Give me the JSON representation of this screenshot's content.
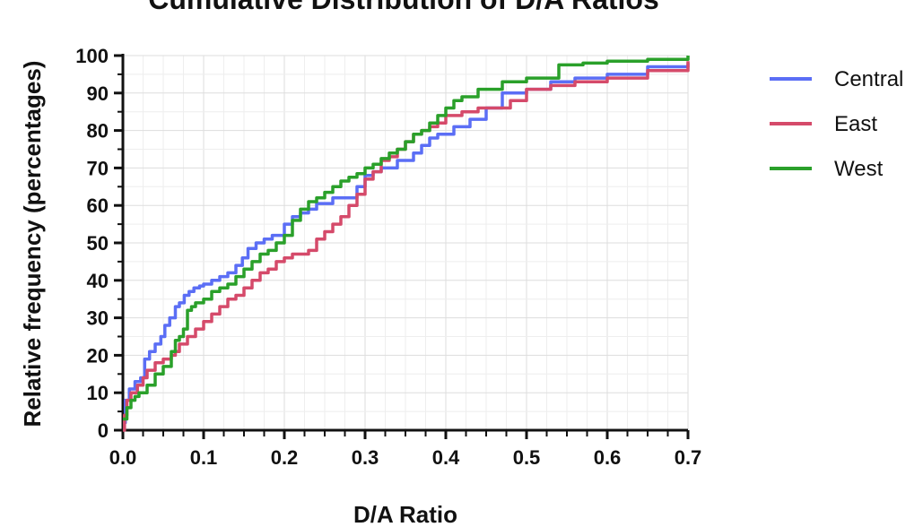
{
  "chart_data": {
    "type": "line",
    "title": "Cumulative Distribution of D/A Ratios",
    "xlabel": "D/A Ratio",
    "ylabel": "Relative frequency (percentages)",
    "xlim": [
      0,
      0.7
    ],
    "ylim": [
      0,
      100
    ],
    "x_ticks": [
      "0.0",
      "0.1",
      "0.2",
      "0.3",
      "0.4",
      "0.5",
      "0.6",
      "0.7"
    ],
    "y_ticks": [
      "0",
      "10",
      "20",
      "30",
      "40",
      "50",
      "60",
      "70",
      "80",
      "90",
      "100"
    ],
    "grid": true,
    "legend_position": "right",
    "series": [
      {
        "name": "Central",
        "color": "#5b6ef5",
        "points": [
          [
            0,
            2
          ],
          [
            0.003,
            8
          ],
          [
            0.008,
            11
          ],
          [
            0.015,
            13
          ],
          [
            0.022,
            14
          ],
          [
            0.027,
            19
          ],
          [
            0.033,
            21
          ],
          [
            0.04,
            23
          ],
          [
            0.047,
            25
          ],
          [
            0.052,
            28
          ],
          [
            0.058,
            30
          ],
          [
            0.065,
            33
          ],
          [
            0.07,
            34
          ],
          [
            0.076,
            36
          ],
          [
            0.082,
            37
          ],
          [
            0.088,
            38
          ],
          [
            0.095,
            38.5
          ],
          [
            0.1,
            39
          ],
          [
            0.11,
            40
          ],
          [
            0.12,
            41
          ],
          [
            0.13,
            42
          ],
          [
            0.14,
            44
          ],
          [
            0.148,
            46
          ],
          [
            0.155,
            48.5
          ],
          [
            0.165,
            50
          ],
          [
            0.175,
            51
          ],
          [
            0.185,
            52
          ],
          [
            0.2,
            55
          ],
          [
            0.21,
            57
          ],
          [
            0.22,
            58
          ],
          [
            0.23,
            59
          ],
          [
            0.24,
            60.5
          ],
          [
            0.26,
            62
          ],
          [
            0.28,
            62
          ],
          [
            0.29,
            65
          ],
          [
            0.3,
            68
          ],
          [
            0.31,
            69
          ],
          [
            0.32,
            70
          ],
          [
            0.34,
            72
          ],
          [
            0.36,
            74
          ],
          [
            0.37,
            76
          ],
          [
            0.38,
            78
          ],
          [
            0.39,
            79
          ],
          [
            0.41,
            81
          ],
          [
            0.43,
            83
          ],
          [
            0.45,
            86
          ],
          [
            0.47,
            90
          ],
          [
            0.5,
            91
          ],
          [
            0.53,
            93
          ],
          [
            0.56,
            94
          ],
          [
            0.6,
            95
          ],
          [
            0.65,
            97
          ],
          [
            0.7,
            98
          ]
        ]
      },
      {
        "name": "East",
        "color": "#d54a6a",
        "points": [
          [
            0,
            0
          ],
          [
            0.002,
            4
          ],
          [
            0.005,
            8
          ],
          [
            0.01,
            10
          ],
          [
            0.018,
            12
          ],
          [
            0.025,
            14
          ],
          [
            0.03,
            16
          ],
          [
            0.04,
            18
          ],
          [
            0.05,
            19
          ],
          [
            0.06,
            20
          ],
          [
            0.065,
            21
          ],
          [
            0.07,
            23
          ],
          [
            0.08,
            25
          ],
          [
            0.09,
            27
          ],
          [
            0.1,
            29
          ],
          [
            0.11,
            31
          ],
          [
            0.12,
            33
          ],
          [
            0.13,
            35
          ],
          [
            0.14,
            36
          ],
          [
            0.15,
            38
          ],
          [
            0.16,
            40
          ],
          [
            0.17,
            42
          ],
          [
            0.18,
            43
          ],
          [
            0.19,
            45
          ],
          [
            0.2,
            46
          ],
          [
            0.21,
            47
          ],
          [
            0.22,
            47
          ],
          [
            0.23,
            48
          ],
          [
            0.24,
            51
          ],
          [
            0.25,
            53
          ],
          [
            0.26,
            55
          ],
          [
            0.27,
            57
          ],
          [
            0.28,
            60
          ],
          [
            0.29,
            63
          ],
          [
            0.3,
            67
          ],
          [
            0.31,
            69
          ],
          [
            0.32,
            72
          ],
          [
            0.33,
            73
          ],
          [
            0.34,
            75
          ],
          [
            0.35,
            77
          ],
          [
            0.36,
            79
          ],
          [
            0.37,
            80
          ],
          [
            0.38,
            81
          ],
          [
            0.39,
            82
          ],
          [
            0.4,
            84
          ],
          [
            0.42,
            85
          ],
          [
            0.44,
            86
          ],
          [
            0.46,
            86
          ],
          [
            0.48,
            88
          ],
          [
            0.5,
            91
          ],
          [
            0.53,
            92
          ],
          [
            0.56,
            93
          ],
          [
            0.6,
            94
          ],
          [
            0.65,
            96
          ],
          [
            0.7,
            98.5
          ]
        ]
      },
      {
        "name": "West",
        "color": "#2aa02a",
        "points": [
          [
            0,
            3
          ],
          [
            0.005,
            6
          ],
          [
            0.01,
            8
          ],
          [
            0.015,
            9
          ],
          [
            0.02,
            10
          ],
          [
            0.03,
            12
          ],
          [
            0.04,
            15
          ],
          [
            0.05,
            17
          ],
          [
            0.06,
            21
          ],
          [
            0.065,
            24
          ],
          [
            0.07,
            25
          ],
          [
            0.075,
            27
          ],
          [
            0.08,
            32
          ],
          [
            0.085,
            33
          ],
          [
            0.09,
            34
          ],
          [
            0.1,
            35
          ],
          [
            0.11,
            37
          ],
          [
            0.12,
            38
          ],
          [
            0.13,
            39
          ],
          [
            0.14,
            41
          ],
          [
            0.15,
            43
          ],
          [
            0.16,
            45
          ],
          [
            0.17,
            47
          ],
          [
            0.18,
            48
          ],
          [
            0.19,
            50
          ],
          [
            0.2,
            52
          ],
          [
            0.21,
            56
          ],
          [
            0.22,
            59
          ],
          [
            0.23,
            61
          ],
          [
            0.24,
            62
          ],
          [
            0.25,
            63.5
          ],
          [
            0.26,
            65
          ],
          [
            0.27,
            66.5
          ],
          [
            0.28,
            67.5
          ],
          [
            0.29,
            68.5
          ],
          [
            0.3,
            70
          ],
          [
            0.31,
            71
          ],
          [
            0.32,
            72.5
          ],
          [
            0.33,
            74
          ],
          [
            0.34,
            75
          ],
          [
            0.35,
            77
          ],
          [
            0.36,
            79
          ],
          [
            0.37,
            80
          ],
          [
            0.38,
            82
          ],
          [
            0.39,
            84
          ],
          [
            0.4,
            86
          ],
          [
            0.41,
            88
          ],
          [
            0.42,
            89
          ],
          [
            0.44,
            91
          ],
          [
            0.47,
            93
          ],
          [
            0.5,
            94
          ],
          [
            0.54,
            96
          ],
          [
            0.54,
            97.5
          ],
          [
            0.57,
            98
          ],
          [
            0.6,
            98.5
          ],
          [
            0.65,
            99
          ],
          [
            0.7,
            100
          ]
        ]
      }
    ]
  }
}
